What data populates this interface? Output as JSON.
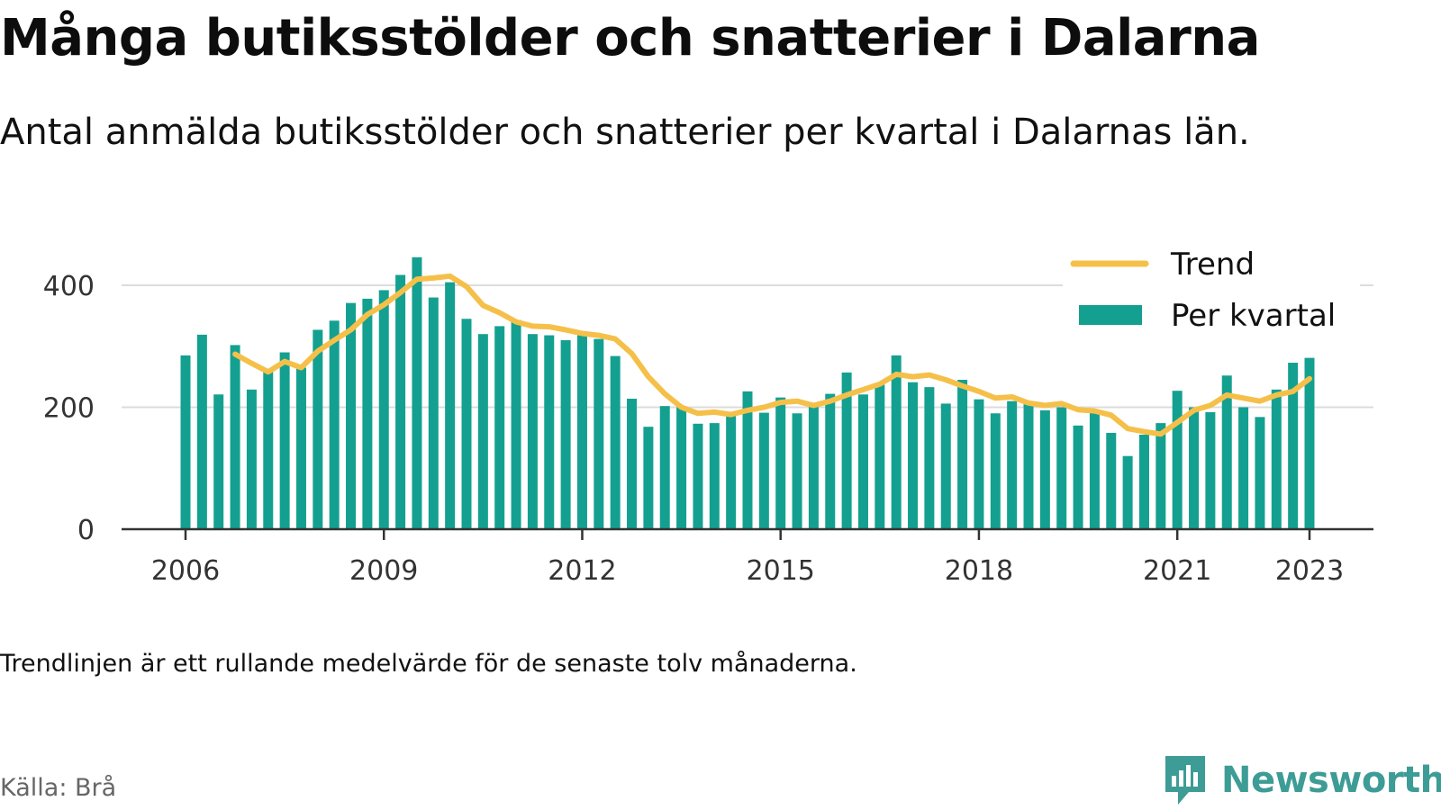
{
  "title": "Många butiksstölder och snatterier i Dalarna",
  "subtitle": "Antal anmälda butiksstölder och snatterier per kvartal i Dalarnas län.",
  "note": "Trendlinjen är ett rullande medelvärde för de senaste tolv månaderna.",
  "source": "Källa: Brå",
  "brand": {
    "name": "Newsworthy",
    "icon": "newsworthy-logo-icon",
    "color": "#3d9c95"
  },
  "chart_data": {
    "type": "bar",
    "ylim": [
      0,
      400
    ],
    "y_ticks": [
      "0",
      "200",
      "400"
    ],
    "x_ticks": [
      {
        "label": "2006",
        "index": 0
      },
      {
        "label": "2009",
        "index": 12
      },
      {
        "label": "2012",
        "index": 24
      },
      {
        "label": "2015",
        "index": 36
      },
      {
        "label": "2018",
        "index": 48
      },
      {
        "label": "2021",
        "index": 60
      },
      {
        "label": "2023",
        "index": 68
      }
    ],
    "legend": [
      {
        "label": "Trend",
        "kind": "line",
        "color": "#f5c04a"
      },
      {
        "label": "Per kvartal",
        "kind": "bar",
        "color": "#14a090"
      }
    ],
    "legend_position": "top-right",
    "grid": true,
    "series": [
      {
        "name": "Per kvartal",
        "color": "#14a090",
        "values": [
          285,
          319,
          221,
          302,
          229,
          261,
          290,
          265,
          327,
          342,
          371,
          378,
          392,
          417,
          446,
          380,
          405,
          345,
          320,
          333,
          343,
          320,
          318,
          310,
          318,
          312,
          284,
          214,
          168,
          202,
          200,
          173,
          174,
          188,
          226,
          191,
          216,
          190,
          205,
          222,
          257,
          221,
          237,
          285,
          241,
          233,
          206,
          245,
          213,
          190,
          210,
          205,
          195,
          200,
          170,
          194,
          158,
          120,
          155,
          174,
          227,
          200,
          192,
          252,
          200,
          184,
          229,
          273,
          281
        ]
      },
      {
        "name": "Trend",
        "color": "#f5c04a",
        "start_index": 3,
        "values": [
          287,
          272,
          258,
          275,
          265,
          292,
          310,
          327,
          352,
          368,
          388,
          410,
          412,
          415,
          398,
          367,
          355,
          340,
          333,
          332,
          327,
          321,
          318,
          312,
          288,
          250,
          222,
          200,
          190,
          192,
          188,
          195,
          200,
          208,
          210,
          203,
          210,
          220,
          229,
          238,
          254,
          250,
          253,
          245,
          235,
          226,
          215,
          217,
          207,
          203,
          206,
          196,
          194,
          187,
          165,
          160,
          156,
          175,
          195,
          203,
          220,
          215,
          210,
          220,
          226,
          247
        ]
      }
    ]
  }
}
